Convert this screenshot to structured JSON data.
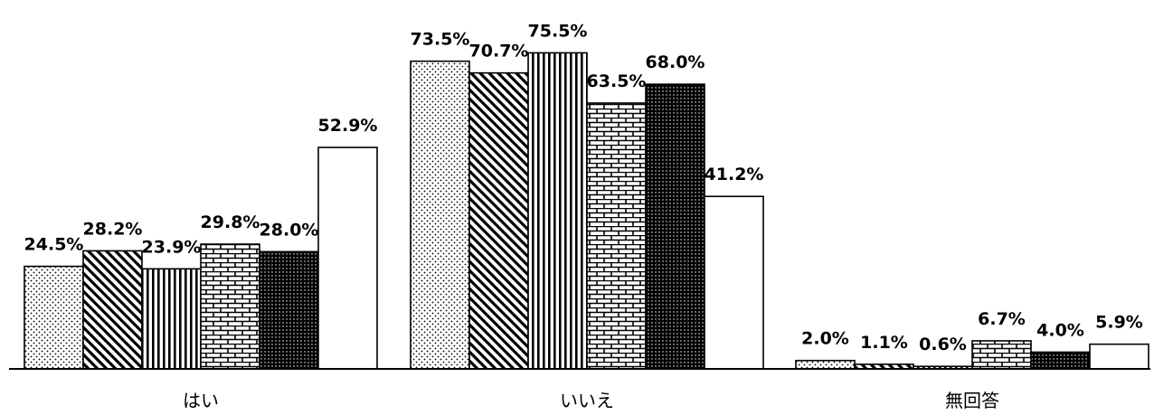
{
  "chart_data": {
    "type": "bar",
    "categories": [
      "はい",
      "いいえ",
      "無回答"
    ],
    "series": [
      {
        "pattern": "sparse-dots",
        "values": [
          24.5,
          73.5,
          2.0
        ]
      },
      {
        "pattern": "diagonal-stripes",
        "values": [
          28.2,
          70.7,
          1.1
        ]
      },
      {
        "pattern": "vertical-stripes",
        "values": [
          23.9,
          75.5,
          0.6
        ]
      },
      {
        "pattern": "bricks",
        "values": [
          29.8,
          63.5,
          6.7
        ]
      },
      {
        "pattern": "dense-dots",
        "values": [
          28.0,
          68.0,
          4.0
        ]
      },
      {
        "pattern": "plain-white",
        "values": [
          52.9,
          41.2,
          5.9
        ]
      }
    ],
    "value_labels": [
      [
        "24.5%",
        "73.5%",
        "2.0%"
      ],
      [
        "28.2%",
        "70.7%",
        "1.1%"
      ],
      [
        "23.9%",
        "75.5%",
        "0.6%"
      ],
      [
        "29.8%",
        "63.5%",
        "6.7%"
      ],
      [
        "28.0%",
        "68.0%",
        "4.0%"
      ],
      [
        "52.9%",
        "41.2%",
        "5.9%"
      ]
    ],
    "ylim": [
      0,
      100
    ],
    "grid": false,
    "legend": "none",
    "colors": {
      "stroke": "#000000",
      "fill": "#ffffff",
      "pattern": "#000000"
    }
  }
}
